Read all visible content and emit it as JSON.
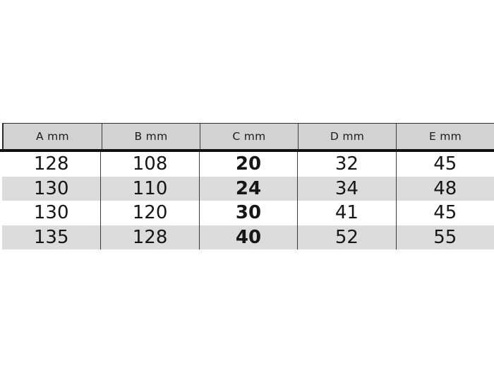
{
  "table": {
    "headers": [
      "A mm",
      "B mm",
      "C mm",
      "D mm",
      "E mm"
    ],
    "rows": [
      [
        "128",
        "108",
        "20",
        "32",
        "45"
      ],
      [
        "130",
        "110",
        "24",
        "34",
        "48"
      ],
      [
        "130",
        "120",
        "30",
        "41",
        "45"
      ],
      [
        "135",
        "128",
        "40",
        "52",
        "55"
      ]
    ],
    "emphasized_column": "C mm",
    "colors": {
      "header_bg": "#d2d2d2",
      "alt_row_bg": "#dcdcdc",
      "grid_line": "#3b3b3b",
      "heavy_rule": "#101010",
      "text": "#161616"
    }
  }
}
